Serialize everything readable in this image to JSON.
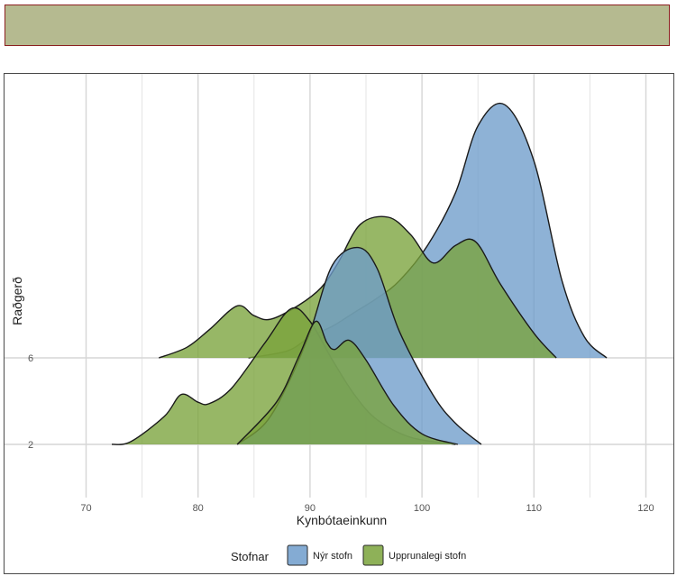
{
  "chart_data": {
    "type": "area",
    "subtype": "ridgeline",
    "title": "",
    "xlabel": "Kynbótaeinkunn",
    "ylabel": "Raðgerð",
    "xlim": [
      66,
      126
    ],
    "x_ticks": [
      70,
      80,
      90,
      100,
      110,
      120
    ],
    "rows": [
      "2",
      "6"
    ],
    "grid": true,
    "legend": {
      "title": "Stofnar",
      "position": "bottom",
      "entries": [
        {
          "name": "Nýr stofn",
          "color": "#6e9ccb"
        },
        {
          "name": "Upprunalegi stofn",
          "color": "#7aa33b"
        }
      ]
    },
    "series": [
      {
        "name": "Upprunalegi stofn",
        "row": "2",
        "color": "#7aa33b",
        "x": [
          72.3,
          74,
          77,
          78.5,
          80,
          81,
          83,
          86,
          88.3,
          90,
          92,
          94,
          96,
          99,
          103
        ],
        "h": [
          0,
          0.04,
          0.4,
          0.71,
          0.6,
          0.58,
          0.8,
          1.45,
          1.93,
          1.75,
          1.2,
          0.7,
          0.35,
          0.1,
          0
        ]
      },
      {
        "name": "Nýr stofn",
        "row": "2",
        "color": "#6e9ccb",
        "x": [
          83.5,
          86,
          88,
          90,
          92,
          94.3,
          96,
          98,
          101,
          103,
          105.3
        ],
        "h": [
          0,
          0.3,
          0.85,
          1.6,
          2.55,
          2.8,
          2.5,
          1.6,
          0.7,
          0.3,
          0
        ]
      },
      {
        "name": "Upprunalegi stofn",
        "row": "2",
        "color": "#7aa33b",
        "x": [
          83.5,
          87,
          89,
          90.5,
          91.5,
          92.2,
          93.5,
          95,
          97.5,
          100,
          103.2
        ],
        "h": [
          0,
          0.6,
          1.25,
          1.75,
          1.45,
          1.35,
          1.48,
          1.2,
          0.55,
          0.15,
          0
        ]
      },
      {
        "name": "Nýr stofn",
        "row": "6",
        "color": "#6e9ccb",
        "x": [
          84.5,
          88,
          90,
          92,
          94,
          96,
          98,
          100.5,
          103,
          105,
          107.4,
          110,
          112.5,
          114.5,
          116.5
        ],
        "h": [
          0,
          0.1,
          0.3,
          0.45,
          0.65,
          0.85,
          1.1,
          1.6,
          2.35,
          3.3,
          3.6,
          2.8,
          1.1,
          0.3,
          0
        ]
      },
      {
        "name": "Upprunalegi stofn",
        "row": "6",
        "color": "#7aa33b",
        "x": [
          76.5,
          79,
          81,
          83.5,
          85,
          86.5,
          89,
          91,
          92.5,
          94.5,
          97,
          99,
          101,
          103,
          104.8,
          107,
          110,
          112
        ],
        "h": [
          0,
          0.15,
          0.4,
          0.74,
          0.6,
          0.55,
          0.75,
          1.0,
          1.35,
          1.9,
          2.0,
          1.75,
          1.35,
          1.6,
          1.65,
          1.05,
          0.35,
          0
        ]
      }
    ]
  }
}
